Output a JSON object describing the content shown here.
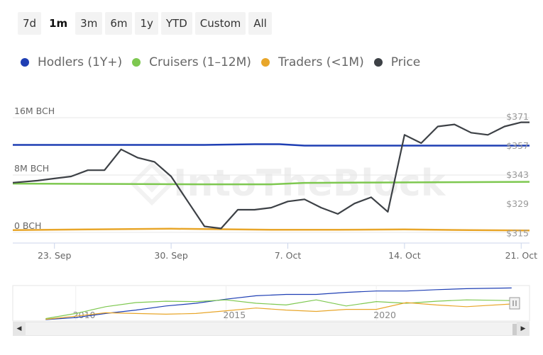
{
  "range_buttons": [
    {
      "label": "7d",
      "active": false
    },
    {
      "label": "1m",
      "active": true
    },
    {
      "label": "3m",
      "active": false
    },
    {
      "label": "6m",
      "active": false
    },
    {
      "label": "1y",
      "active": false
    },
    {
      "label": "YTD",
      "active": false
    },
    {
      "label": "Custom",
      "active": false
    },
    {
      "label": "All",
      "active": false
    }
  ],
  "watermark": "IntoTheBlock",
  "colors": {
    "hodlers": "#1f3fb4",
    "cruisers": "#7ec850",
    "traders": "#e8a62a",
    "price": "#3d4146",
    "grid": "#e6e6e6",
    "axis_text": "#666666"
  },
  "chart_data": [
    {
      "type": "line",
      "x_ticks": [
        "23. Sep",
        "30. Sep",
        "7. Oct",
        "14. Oct",
        "21. Oct"
      ],
      "x_tick_days": [
        1.0,
        8.0,
        15.0,
        22.0,
        29.0
      ],
      "xlim": [
        -1.5,
        29.5
      ],
      "y_left_ticks": [
        "0 BCH",
        "8M BCH",
        "16M BCH"
      ],
      "y_left_values": [
        0,
        8000000,
        16000000
      ],
      "y_left_lim": [
        -1500000,
        16600000
      ],
      "y_right_ticks": [
        "$315",
        "$329",
        "$343",
        "$357",
        "$371"
      ],
      "y_right_values": [
        315,
        329,
        343,
        357,
        371
      ],
      "y_right_lim": [
        310,
        372.3
      ],
      "series": [
        {
          "name": "Hodlers (1Y+)",
          "axis": "left",
          "color": "#1f3fb4",
          "x": [
            -1.5,
            0,
            5,
            10,
            13,
            14.5,
            16,
            20,
            25,
            29.5
          ],
          "y": [
            12200000,
            12200000,
            12200000,
            12200000,
            12300000,
            12300000,
            12100000,
            12100000,
            12100000,
            12100000
          ]
        },
        {
          "name": "Cruisers (1-12M)",
          "axis": "left",
          "color": "#7ec850",
          "x": [
            -1.5,
            5,
            10,
            14,
            16,
            20,
            25,
            29.5
          ],
          "y": [
            6800000,
            6750000,
            6700000,
            6700000,
            6900000,
            6950000,
            7000000,
            7050000
          ]
        },
        {
          "name": "Traders (<1M)",
          "axis": "left",
          "color": "#e8a62a",
          "x": [
            -1.5,
            3,
            8,
            12,
            14,
            18,
            22,
            26,
            29.5
          ],
          "y": [
            300000,
            400000,
            500000,
            400000,
            350000,
            350000,
            400000,
            300000,
            250000
          ]
        },
        {
          "name": "Price",
          "axis": "right",
          "color": "#3d4146",
          "x": [
            -1.5,
            0,
            1,
            2,
            3,
            4,
            5,
            6,
            7,
            8,
            9,
            10,
            11,
            12,
            13,
            14,
            15,
            16,
            17,
            18,
            19,
            20,
            21,
            22,
            23,
            24,
            25,
            26,
            27,
            28,
            29,
            29.5
          ],
          "y": [
            339,
            340,
            341,
            342,
            345,
            345,
            355,
            351,
            349,
            342,
            330,
            318,
            317,
            326,
            326,
            327,
            330,
            331,
            327,
            324,
            329,
            332,
            325,
            362,
            358,
            366,
            367,
            363,
            362,
            366,
            368,
            368
          ]
        }
      ]
    },
    {
      "type": "line",
      "role": "navigator",
      "x_ticks": [
        "2010",
        "2015",
        "2020"
      ],
      "x_tick_years": [
        2010,
        2015,
        2020
      ],
      "xlim": [
        2008,
        2024.6
      ],
      "ylim": [
        0,
        1
      ],
      "series": [
        {
          "name": "Hodlers (1Y+)",
          "color": "#1f3fb4",
          "x": [
            2009,
            2010,
            2011,
            2012,
            2013,
            2014,
            2015,
            2016,
            2017,
            2018,
            2019,
            2020,
            2021,
            2022,
            2023,
            2024.5
          ],
          "y": [
            0.02,
            0.08,
            0.2,
            0.3,
            0.42,
            0.5,
            0.62,
            0.72,
            0.76,
            0.76,
            0.82,
            0.86,
            0.86,
            0.9,
            0.93,
            0.95
          ]
        },
        {
          "name": "Cruisers (1-12M)",
          "color": "#7ec850",
          "x": [
            2009,
            2010,
            2011,
            2012,
            2013,
            2014,
            2015,
            2016,
            2017,
            2018,
            2019,
            2020,
            2021,
            2022,
            2023,
            2024.5
          ],
          "y": [
            0.05,
            0.2,
            0.4,
            0.52,
            0.56,
            0.55,
            0.6,
            0.5,
            0.45,
            0.6,
            0.42,
            0.55,
            0.5,
            0.56,
            0.6,
            0.58
          ]
        },
        {
          "name": "Traders (<1M)",
          "color": "#e8a62a",
          "x": [
            2009,
            2010,
            2011,
            2012,
            2013,
            2014,
            2015,
            2016,
            2017,
            2018,
            2019,
            2020,
            2021,
            2022,
            2023,
            2024.5
          ],
          "y": [
            0.03,
            0.12,
            0.22,
            0.2,
            0.18,
            0.2,
            0.28,
            0.36,
            0.3,
            0.26,
            0.32,
            0.32,
            0.52,
            0.45,
            0.4,
            0.48
          ]
        }
      ]
    }
  ],
  "legend": [
    {
      "label": "Hodlers (1Y+)",
      "color": "#1f3fb4"
    },
    {
      "label": "Cruisers (1–12M)",
      "color": "#7ec850"
    },
    {
      "label": "Traders (<1M)",
      "color": "#e8a62a"
    },
    {
      "label": "Price",
      "color": "#3d4146"
    }
  ]
}
